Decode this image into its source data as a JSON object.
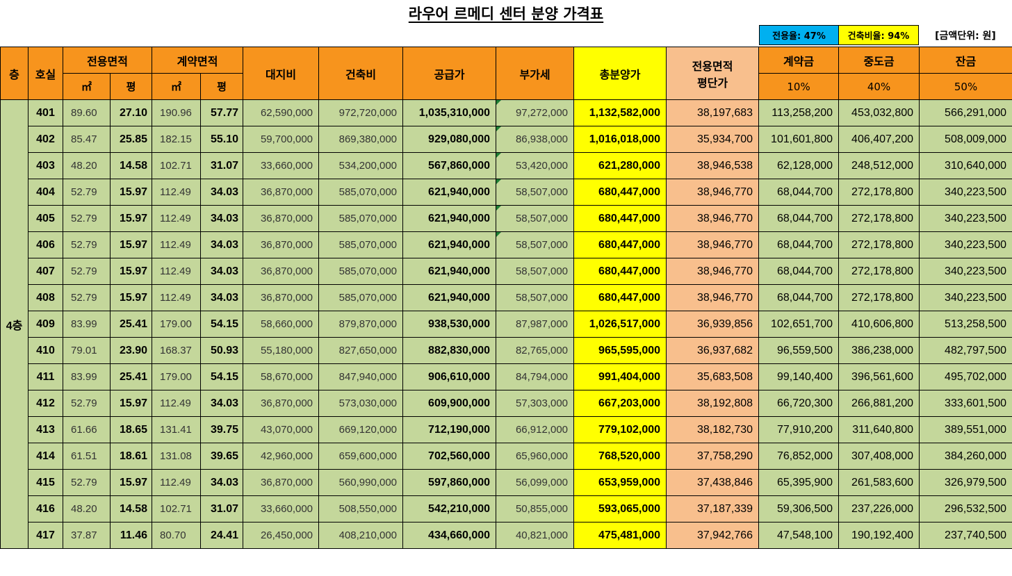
{
  "title": "라우어 르메디 센터 분양 가격표",
  "badges": {
    "exclusive_ratio": "전용율: 47%",
    "building_ratio": "건축비율: 94%",
    "unit": "[금액단위: 원]"
  },
  "header": {
    "floor": "층",
    "room": "호실",
    "exclusive_area": "전용면적",
    "contract_area": "계약면적",
    "sqm": "㎡",
    "pyeong": "평",
    "land_cost": "대지비",
    "building_cost": "건축비",
    "supply_price": "공급가",
    "vat": "부가세",
    "total_price": "총분양가",
    "per_pyeong_1": "전용면적",
    "per_pyeong_2": "평단가",
    "deposit": "계약금",
    "deposit_pct": "10%",
    "interim": "중도금",
    "interim_pct": "40%",
    "balance": "잔금",
    "balance_pct": "50%"
  },
  "floor_label": "4층",
  "rows": [
    [
      "401",
      "89.60",
      "27.10",
      "190.96",
      "57.77",
      "62,590,000",
      "972,720,000",
      "1,035,310,000",
      "97,272,000",
      "1,132,582,000",
      "38,197,683",
      "113,258,200",
      "453,032,800",
      "566,291,000"
    ],
    [
      "402",
      "85.47",
      "25.85",
      "182.15",
      "55.10",
      "59,700,000",
      "869,380,000",
      "929,080,000",
      "86,938,000",
      "1,016,018,000",
      "35,934,700",
      "101,601,800",
      "406,407,200",
      "508,009,000"
    ],
    [
      "403",
      "48.20",
      "14.58",
      "102.71",
      "31.07",
      "33,660,000",
      "534,200,000",
      "567,860,000",
      "53,420,000",
      "621,280,000",
      "38,946,538",
      "62,128,000",
      "248,512,000",
      "310,640,000"
    ],
    [
      "404",
      "52.79",
      "15.97",
      "112.49",
      "34.03",
      "36,870,000",
      "585,070,000",
      "621,940,000",
      "58,507,000",
      "680,447,000",
      "38,946,770",
      "68,044,700",
      "272,178,800",
      "340,223,500"
    ],
    [
      "405",
      "52.79",
      "15.97",
      "112.49",
      "34.03",
      "36,870,000",
      "585,070,000",
      "621,940,000",
      "58,507,000",
      "680,447,000",
      "38,946,770",
      "68,044,700",
      "272,178,800",
      "340,223,500"
    ],
    [
      "406",
      "52.79",
      "15.97",
      "112.49",
      "34.03",
      "36,870,000",
      "585,070,000",
      "621,940,000",
      "58,507,000",
      "680,447,000",
      "38,946,770",
      "68,044,700",
      "272,178,800",
      "340,223,500"
    ],
    [
      "407",
      "52.79",
      "15.97",
      "112.49",
      "34.03",
      "36,870,000",
      "585,070,000",
      "621,940,000",
      "58,507,000",
      "680,447,000",
      "38,946,770",
      "68,044,700",
      "272,178,800",
      "340,223,500"
    ],
    [
      "408",
      "52.79",
      "15.97",
      "112.49",
      "34.03",
      "36,870,000",
      "585,070,000",
      "621,940,000",
      "58,507,000",
      "680,447,000",
      "38,946,770",
      "68,044,700",
      "272,178,800",
      "340,223,500"
    ],
    [
      "409",
      "83.99",
      "25.41",
      "179.00",
      "54.15",
      "58,660,000",
      "879,870,000",
      "938,530,000",
      "87,987,000",
      "1,026,517,000",
      "36,939,856",
      "102,651,700",
      "410,606,800",
      "513,258,500"
    ],
    [
      "410",
      "79.01",
      "23.90",
      "168.37",
      "50.93",
      "55,180,000",
      "827,650,000",
      "882,830,000",
      "82,765,000",
      "965,595,000",
      "36,937,682",
      "96,559,500",
      "386,238,000",
      "482,797,500"
    ],
    [
      "411",
      "83.99",
      "25.41",
      "179.00",
      "54.15",
      "58,670,000",
      "847,940,000",
      "906,610,000",
      "84,794,000",
      "991,404,000",
      "35,683,508",
      "99,140,400",
      "396,561,600",
      "495,702,000"
    ],
    [
      "412",
      "52.79",
      "15.97",
      "112.49",
      "34.03",
      "36,870,000",
      "573,030,000",
      "609,900,000",
      "57,303,000",
      "667,203,000",
      "38,192,808",
      "66,720,300",
      "266,881,200",
      "333,601,500"
    ],
    [
      "413",
      "61.66",
      "18.65",
      "131.41",
      "39.75",
      "43,070,000",
      "669,120,000",
      "712,190,000",
      "66,912,000",
      "779,102,000",
      "38,182,730",
      "77,910,200",
      "311,640,800",
      "389,551,000"
    ],
    [
      "414",
      "61.51",
      "18.61",
      "131.08",
      "39.65",
      "42,960,000",
      "659,600,000",
      "702,560,000",
      "65,960,000",
      "768,520,000",
      "37,758,290",
      "76,852,000",
      "307,408,000",
      "384,260,000"
    ],
    [
      "415",
      "52.79",
      "15.97",
      "112.49",
      "34.03",
      "36,870,000",
      "560,990,000",
      "597,860,000",
      "56,099,000",
      "653,959,000",
      "37,438,846",
      "65,395,900",
      "261,583,600",
      "326,979,500"
    ],
    [
      "416",
      "48.20",
      "14.58",
      "102.71",
      "31.07",
      "33,660,000",
      "508,550,000",
      "542,210,000",
      "50,855,000",
      "593,065,000",
      "37,187,339",
      "59,306,500",
      "237,226,000",
      "296,532,500"
    ],
    [
      "417",
      "37.87",
      "11.46",
      "80.70",
      "24.41",
      "26,450,000",
      "408,210,000",
      "434,660,000",
      "40,821,000",
      "475,481,000",
      "37,942,766",
      "47,548,100",
      "190,192,400",
      "237,740,500"
    ]
  ]
}
